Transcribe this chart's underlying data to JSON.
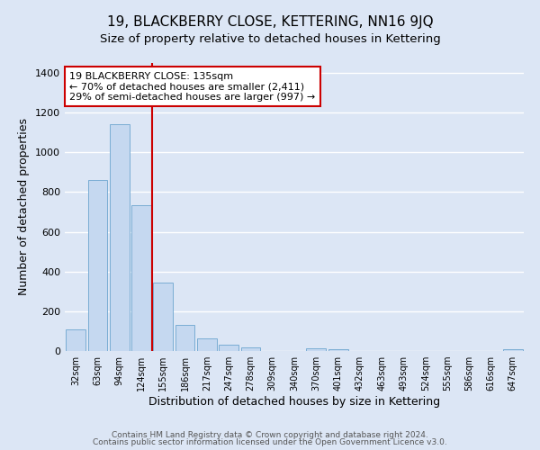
{
  "title": "19, BLACKBERRY CLOSE, KETTERING, NN16 9JQ",
  "subtitle": "Size of property relative to detached houses in Kettering",
  "xlabel": "Distribution of detached houses by size in Kettering",
  "ylabel": "Number of detached properties",
  "bar_labels": [
    "32sqm",
    "63sqm",
    "94sqm",
    "124sqm",
    "155sqm",
    "186sqm",
    "217sqm",
    "247sqm",
    "278sqm",
    "309sqm",
    "340sqm",
    "370sqm",
    "401sqm",
    "432sqm",
    "463sqm",
    "493sqm",
    "524sqm",
    "555sqm",
    "586sqm",
    "616sqm",
    "647sqm"
  ],
  "bar_values": [
    107,
    862,
    1143,
    733,
    345,
    130,
    62,
    33,
    20,
    0,
    0,
    12,
    10,
    0,
    0,
    0,
    0,
    0,
    0,
    0,
    7
  ],
  "bar_color": "#c5d8f0",
  "bar_edgecolor": "#7aadd4",
  "vline_color": "#cc0000",
  "annotation_text": "19 BLACKBERRY CLOSE: 135sqm\n← 70% of detached houses are smaller (2,411)\n29% of semi-detached houses are larger (997) →",
  "annotation_box_color": "#ffffff",
  "annotation_box_edgecolor": "#cc0000",
  "ylim": [
    0,
    1450
  ],
  "yticks": [
    0,
    200,
    400,
    600,
    800,
    1000,
    1200,
    1400
  ],
  "background_color": "#dce6f5",
  "plot_background": "#dce6f5",
  "grid_color": "#ffffff",
  "title_fontsize": 11,
  "subtitle_fontsize": 9.5,
  "footer_line1": "Contains HM Land Registry data © Crown copyright and database right 2024.",
  "footer_line2": "Contains public sector information licensed under the Open Government Licence v3.0."
}
